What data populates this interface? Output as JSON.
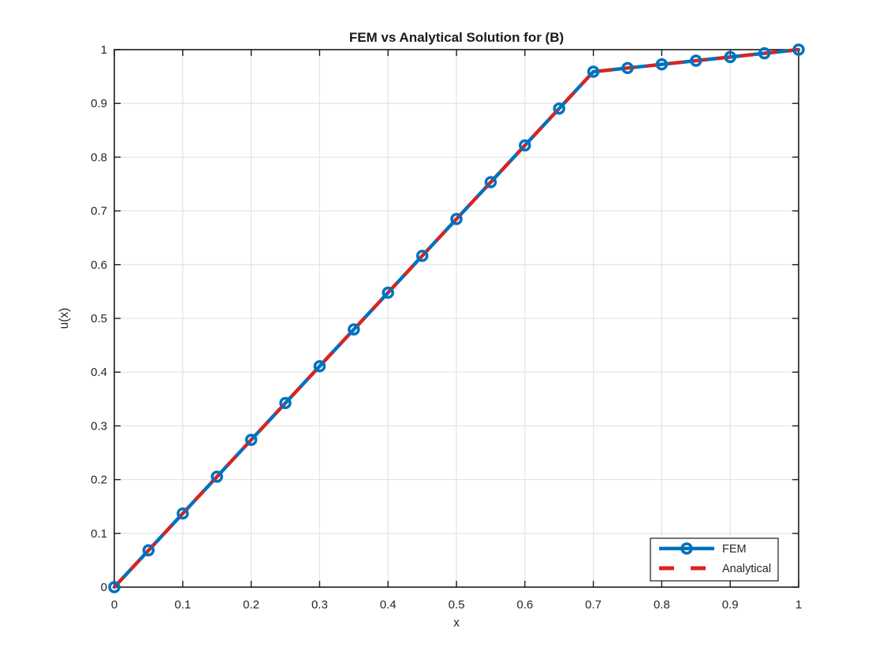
{
  "chart_data": {
    "type": "line",
    "title": "FEM vs Analytical Solution for (B)",
    "xlabel": "x",
    "ylabel": "u(x)",
    "xlim": [
      0,
      1
    ],
    "ylim": [
      0,
      1
    ],
    "grid": true,
    "xtick_values": [
      0,
      0.1,
      0.2,
      0.3,
      0.4,
      0.5,
      0.6,
      0.7,
      0.8,
      0.9,
      1
    ],
    "xtick_labels": [
      "0",
      "0.1",
      "0.2",
      "0.3",
      "0.4",
      "0.5",
      "0.6",
      "0.7",
      "0.8",
      "0.9",
      "1"
    ],
    "ytick_values": [
      0,
      0.1,
      0.2,
      0.3,
      0.4,
      0.5,
      0.6,
      0.7,
      0.8,
      0.9,
      1
    ],
    "ytick_labels": [
      "0",
      "0.1",
      "0.2",
      "0.3",
      "0.4",
      "0.5",
      "0.6",
      "0.7",
      "0.8",
      "0.9",
      "1"
    ],
    "legend": {
      "position": "bottom-right",
      "entries": [
        "FEM",
        "Analytical"
      ]
    },
    "series": [
      {
        "name": "FEM",
        "color": "#0072BD",
        "style": "solid",
        "marker": "circle",
        "x": [
          0,
          0.05,
          0.1,
          0.15,
          0.2,
          0.25,
          0.3,
          0.35,
          0.4,
          0.45,
          0.5,
          0.55,
          0.6,
          0.65,
          0.7,
          0.75,
          0.8,
          0.85,
          0.9,
          0.95,
          1.0
        ],
        "y": [
          0,
          0.0685,
          0.137,
          0.2055,
          0.274,
          0.3425,
          0.411,
          0.4795,
          0.5479,
          0.6164,
          0.6849,
          0.7534,
          0.8219,
          0.8904,
          0.9589,
          0.9658,
          0.9726,
          0.9795,
          0.9863,
          0.9932,
          1.0
        ]
      },
      {
        "name": "Analytical",
        "color": "#E0201E",
        "style": "dashed",
        "marker": "none",
        "x": [
          0,
          0.7,
          1.0
        ],
        "y": [
          0,
          0.9589,
          1.0
        ]
      }
    ],
    "colors": {
      "fem_blue": "#0072BD",
      "analytical_red": "#E0201E",
      "grid_gray": "#e2e2e2",
      "axis_dark": "#1a1a1a"
    }
  }
}
